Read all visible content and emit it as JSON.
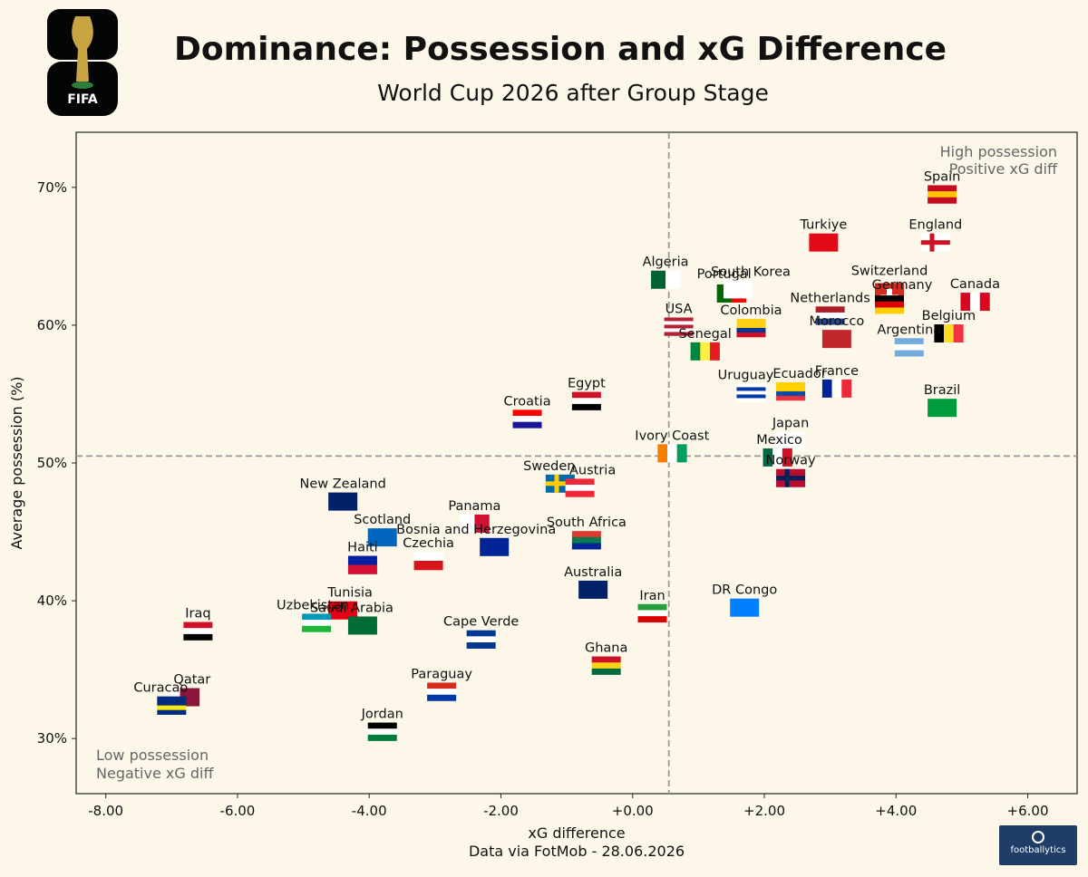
{
  "header": {
    "title": "Dominance: Possession and xG Difference",
    "subtitle": "World Cup 2026 after Group Stage",
    "logo_text": "FIFA"
  },
  "footer": {
    "source": "Data via FotMob - 28.06.2026",
    "brand": "footballytics"
  },
  "chart_data": {
    "type": "scatter",
    "title": "Dominance: Possession and xG Difference",
    "subtitle": "World Cup 2026 after Group Stage",
    "xlabel": "xG difference",
    "ylabel": "Average possession (%)",
    "xlim": [
      -8.45,
      6.75
    ],
    "ylim": [
      26,
      74
    ],
    "x_ticks": [
      -8,
      -6,
      -4,
      -2,
      0,
      2,
      4,
      6
    ],
    "x_tick_labels": [
      "-8.00",
      "-6.00",
      "-4.00",
      "-2.00",
      "+0.00",
      "+2.00",
      "+4.00",
      "+6.00"
    ],
    "y_ticks": [
      30,
      40,
      50,
      60,
      70
    ],
    "y_tick_labels": [
      "30%",
      "40%",
      "50%",
      "60%",
      "70%"
    ],
    "x_mean": 0.55,
    "y_mean": 50.5,
    "grid": false,
    "annotations": {
      "top_right": [
        "High possession",
        "Positive xG diff"
      ],
      "bottom_left": [
        "Low possession",
        "Negative xG diff"
      ]
    },
    "points": [
      {
        "team": "Spain",
        "x": 4.7,
        "y": 69.5
      },
      {
        "team": "England",
        "x": 4.6,
        "y": 66.0
      },
      {
        "team": "Turkiye",
        "x": 2.9,
        "y": 66.0
      },
      {
        "team": "Algeria",
        "x": 0.5,
        "y": 63.3
      },
      {
        "team": "Portugal",
        "x": 1.5,
        "y": 62.3
      },
      {
        "team": "South Korea",
        "x": 1.6,
        "y": 62.6
      },
      {
        "team": "Switzerland",
        "x": 3.9,
        "y": 62.0
      },
      {
        "team": "Germany",
        "x": 3.9,
        "y": 61.5
      },
      {
        "team": "Canada",
        "x": 5.2,
        "y": 61.7
      },
      {
        "team": "Netherlands",
        "x": 3.0,
        "y": 60.7
      },
      {
        "team": "USA",
        "x": 0.7,
        "y": 59.9
      },
      {
        "team": "Colombia",
        "x": 1.8,
        "y": 59.8
      },
      {
        "team": "Morocco",
        "x": 3.1,
        "y": 59.0
      },
      {
        "team": "Belgium",
        "x": 4.8,
        "y": 59.4
      },
      {
        "team": "Argentina",
        "x": 4.2,
        "y": 58.4
      },
      {
        "team": "Senegal",
        "x": 1.1,
        "y": 58.1
      },
      {
        "team": "Uruguay",
        "x": 1.8,
        "y": 55.1
      },
      {
        "team": "Ecuador",
        "x": 2.4,
        "y": 55.2
      },
      {
        "team": "France",
        "x": 3.1,
        "y": 55.4
      },
      {
        "team": "Brazil",
        "x": 4.7,
        "y": 54.0
      },
      {
        "team": "Egypt",
        "x": -0.7,
        "y": 54.5
      },
      {
        "team": "Croatia",
        "x": -1.6,
        "y": 53.2
      },
      {
        "team": "Japan",
        "x": 2.4,
        "y": 51.6
      },
      {
        "team": "Ivory Coast",
        "x": 0.6,
        "y": 50.7
      },
      {
        "team": "Mexico",
        "x": 2.2,
        "y": 50.4
      },
      {
        "team": "Norway",
        "x": 2.4,
        "y": 48.9
      },
      {
        "team": "Sweden",
        "x": -1.1,
        "y": 48.5
      },
      {
        "team": "Austria",
        "x": -0.8,
        "y": 48.2
      },
      {
        "team": "New Zealand",
        "x": -4.4,
        "y": 47.2
      },
      {
        "team": "Panama",
        "x": -2.4,
        "y": 45.6
      },
      {
        "team": "Scotland",
        "x": -3.8,
        "y": 44.6
      },
      {
        "team": "Bosnia and Herzegovina",
        "x": -2.1,
        "y": 43.9
      },
      {
        "team": "South Africa",
        "x": -0.7,
        "y": 44.4
      },
      {
        "team": "Czechia",
        "x": -3.1,
        "y": 42.9
      },
      {
        "team": "Haiti",
        "x": -4.1,
        "y": 42.6
      },
      {
        "team": "Australia",
        "x": -0.6,
        "y": 40.8
      },
      {
        "team": "Iran",
        "x": 0.3,
        "y": 39.1
      },
      {
        "team": "DR Congo",
        "x": 1.7,
        "y": 39.5
      },
      {
        "team": "Tunisia",
        "x": -4.4,
        "y": 39.3
      },
      {
        "team": "Uzbekistan",
        "x": -4.8,
        "y": 38.4
      },
      {
        "team": "Saudi Arabia",
        "x": -4.1,
        "y": 38.2
      },
      {
        "team": "Iraq",
        "x": -6.6,
        "y": 37.8
      },
      {
        "team": "Cape Verde",
        "x": -2.3,
        "y": 37.2
      },
      {
        "team": "Ghana",
        "x": -0.4,
        "y": 35.3
      },
      {
        "team": "Paraguay",
        "x": -2.9,
        "y": 33.4
      },
      {
        "team": "Qatar",
        "x": -6.8,
        "y": 33.0
      },
      {
        "team": "Curacao",
        "x": -7.0,
        "y": 32.4
      },
      {
        "team": "Jordan",
        "x": -3.8,
        "y": 30.5
      }
    ]
  }
}
